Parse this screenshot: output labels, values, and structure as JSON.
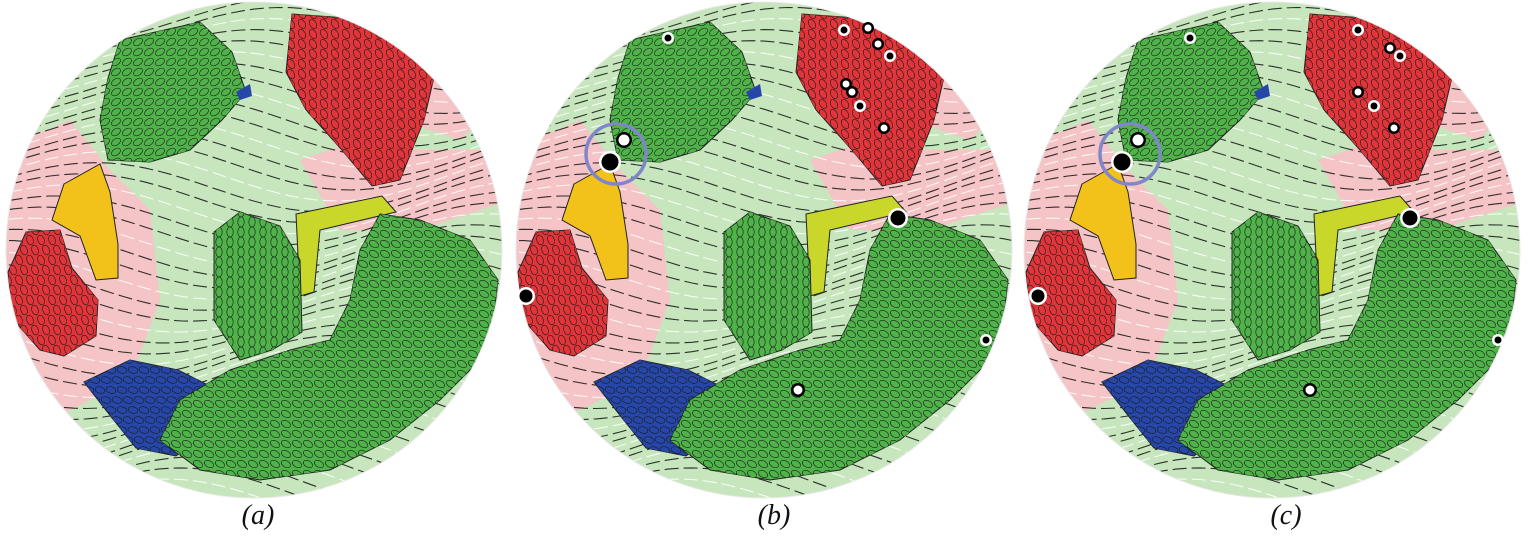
{
  "figure": {
    "panels": [
      {
        "id": "a",
        "caption": "(a)",
        "highlight_circle": false
      },
      {
        "id": "b",
        "caption": "(b)",
        "highlight_circle": true
      },
      {
        "id": "c",
        "caption": "(c)",
        "highlight_circle": true
      }
    ],
    "colors": {
      "background_green": "#c7e6bd",
      "background_pink": "#f4c4c6",
      "cell_green": "#4fb34a",
      "cell_red": "#e0353a",
      "cell_blue": "#2647a8",
      "cell_yellow": "#f2c21a",
      "cell_lime": "#c9d72a",
      "highlight_ring": "#7f86c9",
      "outline": "#000000"
    }
  }
}
